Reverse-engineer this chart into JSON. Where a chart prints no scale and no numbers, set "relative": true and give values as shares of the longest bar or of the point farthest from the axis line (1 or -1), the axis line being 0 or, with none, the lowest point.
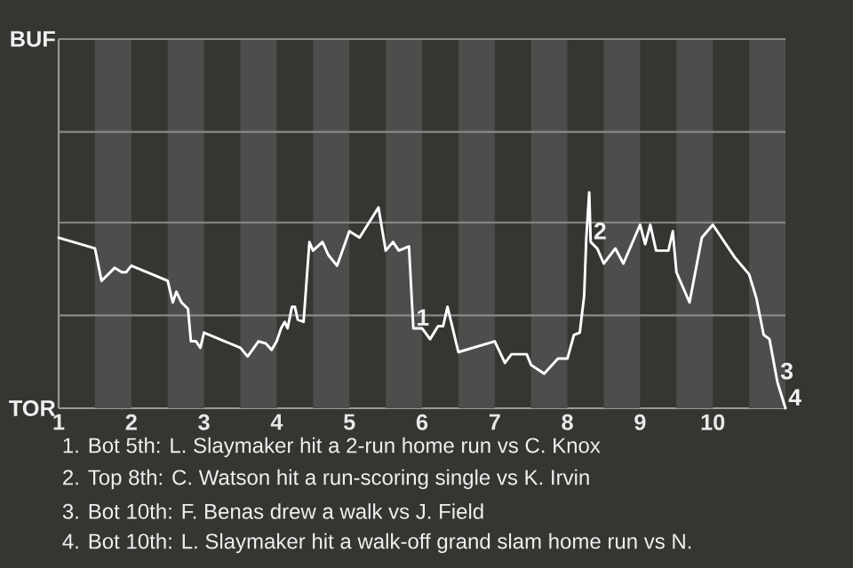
{
  "chart_data": {
    "type": "line",
    "relative": true,
    "xlim": [
      1,
      11
    ],
    "xticks": [
      1,
      2,
      3,
      4,
      5,
      6,
      7,
      8,
      9,
      10
    ],
    "ref_lines": [
      {
        "axis": "y",
        "value": 0.43,
        "color": "#8a8a88"
      },
      {
        "axis": "y",
        "value": 0.86,
        "color": "#8a8a88"
      },
      {
        "axis": "y",
        "value": 1.28,
        "color": "#8a8a88"
      }
    ],
    "bands": [
      {
        "axis": "x",
        "from": 1.5,
        "to": 2,
        "color": "#4e4d4b"
      },
      {
        "axis": "x",
        "from": 2.5,
        "to": 3,
        "color": "#4e4d4b"
      },
      {
        "axis": "x",
        "from": 3.5,
        "to": 4,
        "color": "#4e4d4b"
      },
      {
        "axis": "x",
        "from": 4.5,
        "to": 5,
        "color": "#4e4d4b"
      },
      {
        "axis": "x",
        "from": 5.5,
        "to": 6,
        "color": "#4e4d4b"
      },
      {
        "axis": "x",
        "from": 6.5,
        "to": 7,
        "color": "#4e4d4b"
      },
      {
        "axis": "x",
        "from": 7.5,
        "to": 8,
        "color": "#4e4d4b"
      },
      {
        "axis": "x",
        "from": 8.5,
        "to": 9,
        "color": "#4e4d4b"
      },
      {
        "axis": "x",
        "from": 9.5,
        "to": 10,
        "color": "#4e4d4b"
      },
      {
        "axis": "x",
        "from": 10.5,
        "to": 11,
        "color": "#4e4d4b"
      }
    ],
    "series": [
      {
        "color": "#ffffff",
        "x": [
          1.0,
          1.5,
          1.59,
          1.77,
          1.87,
          1.93,
          2.0,
          2.5,
          2.57,
          2.62,
          2.69,
          2.78,
          2.82,
          2.89,
          2.95,
          3.0,
          3.5,
          3.6,
          3.75,
          3.85,
          3.93,
          4.0,
          4.06,
          4.11,
          4.15,
          4.21,
          4.25,
          4.29,
          4.37,
          4.45,
          4.5,
          4.63,
          4.71,
          4.83,
          5.0,
          5.14,
          5.4,
          5.5,
          5.6,
          5.68,
          5.82,
          5.88,
          6.0,
          6.11,
          6.22,
          6.29,
          6.35,
          6.5,
          7.0,
          7.14,
          7.23,
          7.44,
          7.5,
          7.68,
          7.87,
          8.0,
          8.09,
          8.17,
          8.23,
          8.26,
          8.3,
          8.32,
          8.41,
          8.5,
          8.66,
          8.77,
          9.0,
          9.07,
          9.14,
          9.22,
          9.39,
          9.45,
          9.5,
          9.68,
          9.85,
          10.0,
          10.3,
          10.5,
          10.6,
          10.7,
          10.78,
          10.89,
          11.0
        ],
        "values": [
          0.79,
          0.74,
          0.59,
          0.65,
          0.63,
          0.63,
          0.66,
          0.59,
          0.49,
          0.54,
          0.49,
          0.46,
          0.31,
          0.31,
          0.28,
          0.35,
          0.28,
          0.24,
          0.31,
          0.3,
          0.27,
          0.31,
          0.37,
          0.4,
          0.37,
          0.47,
          0.47,
          0.41,
          0.4,
          0.77,
          0.73,
          0.77,
          0.71,
          0.66,
          0.82,
          0.79,
          0.93,
          0.73,
          0.77,
          0.73,
          0.75,
          0.37,
          0.37,
          0.32,
          0.38,
          0.38,
          0.47,
          0.26,
          0.31,
          0.21,
          0.25,
          0.25,
          0.2,
          0.16,
          0.23,
          0.23,
          0.34,
          0.35,
          0.52,
          0.79,
          1,
          0.77,
          0.74,
          0.67,
          0.74,
          0.67,
          0.85,
          0.76,
          0.85,
          0.73,
          0.73,
          0.82,
          0.63,
          0.49,
          0.79,
          0.85,
          0.7,
          0.62,
          0.51,
          0.34,
          0.32,
          0.12,
          0
        ]
      }
    ],
    "annotations": [
      "BUF",
      "TOR",
      {
        "text": "1",
        "x": 5.88,
        "y": 0.37
      },
      {
        "text": "2",
        "x": 8.32,
        "y": 0.77
      },
      {
        "text": "3",
        "x": 10.89,
        "y": 0.12
      },
      {
        "text": "4",
        "x": 11.0,
        "y": 0
      },
      "1. Bot 5th: L. Slaymaker hit a 2-run home run vs C. Knox",
      "2. Top 8th: C. Watson hit a run-scoring single vs K. Irvin",
      "3. Bot 10th: F. Benas drew a walk vs J. Field",
      "4. Bot 10th: L. Slaymaker hit a walk-off grand slam home run vs N."
    ]
  }
}
